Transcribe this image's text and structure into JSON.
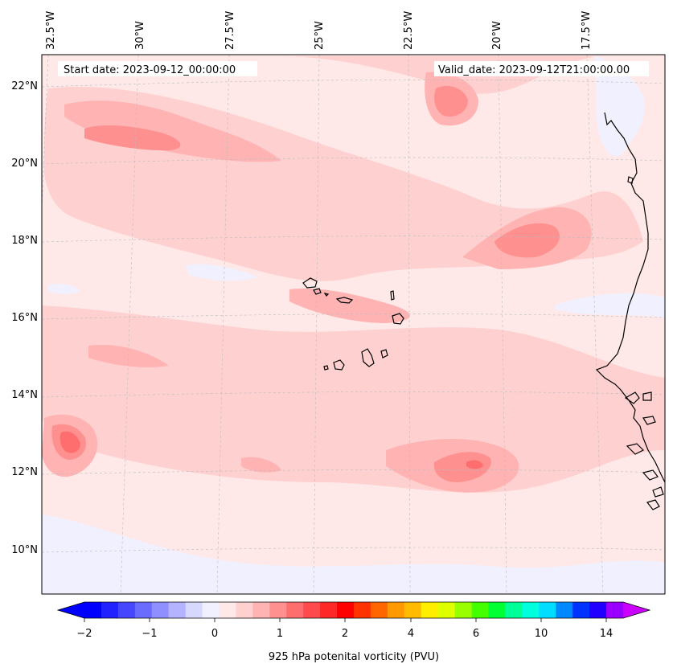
{
  "map": {
    "start_label": "Start date: 2023-09-12_00:00:00",
    "valid_label": "Valid_date: 2023-09-12T21:00:00.00",
    "lon_labels": [
      "32.5°W",
      "30°W",
      "27.5°W",
      "25°W",
      "22.5°W",
      "20°W",
      "17.5°W"
    ],
    "lat_labels": [
      "22°N",
      "20°N",
      "18°N",
      "16°N",
      "14°N",
      "12°N",
      "10°N"
    ],
    "field": "925 hPa potential vorticity",
    "region": "Cabo Verde / West Africa coast"
  },
  "colorbar": {
    "label": "925 hPa potenital vorticity (PVU)",
    "ticks": [
      "−2",
      "−1",
      "0",
      "1",
      "2",
      "4",
      "6",
      "10",
      "14"
    ],
    "colors": [
      "#0000ff",
      "#2222ff",
      "#4646ff",
      "#6b6bff",
      "#8f8fff",
      "#b3b3ff",
      "#d8d8ff",
      "#f0f0ff",
      "#ffe8e8",
      "#ffd0d0",
      "#ffb3b3",
      "#ff9090",
      "#ff6e6e",
      "#ff4b4b",
      "#ff2828",
      "#ff0000",
      "#ff3300",
      "#ff6600",
      "#ff9900",
      "#ffbb00",
      "#ffee00",
      "#ddff00",
      "#99ff00",
      "#44ff00",
      "#00ff33",
      "#00ff99",
      "#00ffdd",
      "#00ddff",
      "#0088ff",
      "#0033ff",
      "#2200ff",
      "#9900ff"
    ],
    "extend_low_color": "#0000ff",
    "extend_high_color": "#cc00ff"
  },
  "style": {
    "background_pv": "#ffe8e8",
    "neg_light": "#f0f0ff",
    "neg_mid": "#d8d8ff",
    "pos_1": "#ffd0d0",
    "pos_2": "#ffb3b3",
    "pos_3": "#ff9090",
    "pos_4": "#ff6e6e",
    "coast": "#000000",
    "grid": "#bbbbbb"
  }
}
